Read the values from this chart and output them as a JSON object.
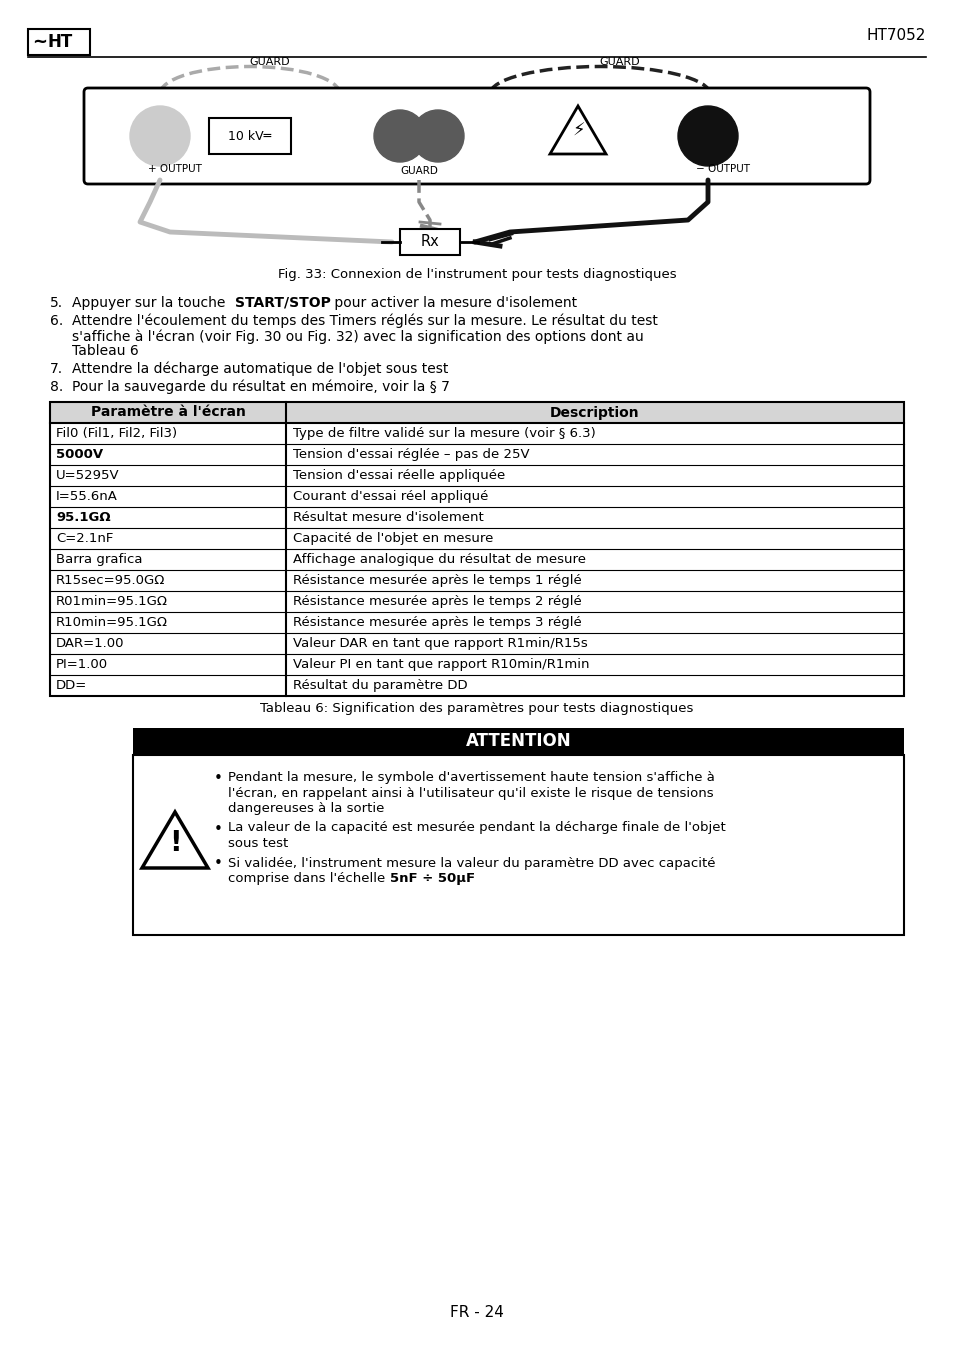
{
  "title_model": "HT7052",
  "fig_caption": "Fig. 33: Connexion de l'instrument pour tests diagnostiques",
  "table_headers": [
    "Paramètre à l'écran",
    "Description"
  ],
  "table_rows": [
    [
      "Fil0 (Fil1, Fil2, Fil3)",
      "Type de filtre validé sur la mesure (voir § 6.3)"
    ],
    [
      "**5000V**",
      "Tension d'essai réglée – pas de 25V"
    ],
    [
      "U=5295V",
      "Tension d'essai réelle appliquée"
    ],
    [
      "I=55.6nA",
      "Courant d'essai réel appliqué"
    ],
    [
      "**95.1GΩ**",
      "Résultat mesure d'isolement"
    ],
    [
      "C=2.1nF",
      "Capacité de l'objet en mesure"
    ],
    [
      "Barra grafica",
      "Affichage analogique du résultat de mesure"
    ],
    [
      "R15sec=95.0GΩ",
      "Résistance mesurée après le temps 1 réglé"
    ],
    [
      "R01min=95.1GΩ",
      "Résistance mesurée après le temps 2 réglé"
    ],
    [
      "R10min=95.1GΩ",
      "Résistance mesurée après le temps 3 réglé"
    ],
    [
      "DAR=1.00",
      "Valeur DAR en tant que rapport R1min/R15s"
    ],
    [
      "PI=1.00",
      "Valeur PI en tant que rapport R10min/R1min"
    ],
    [
      "DD=",
      "Résultat du paramètre DD"
    ]
  ],
  "table_caption": "Tableau 6: Signification des paramètres pour tests diagnostiques",
  "attention_title": "ATTENTION",
  "footer": "FR - 24",
  "bg_color": "#ffffff"
}
